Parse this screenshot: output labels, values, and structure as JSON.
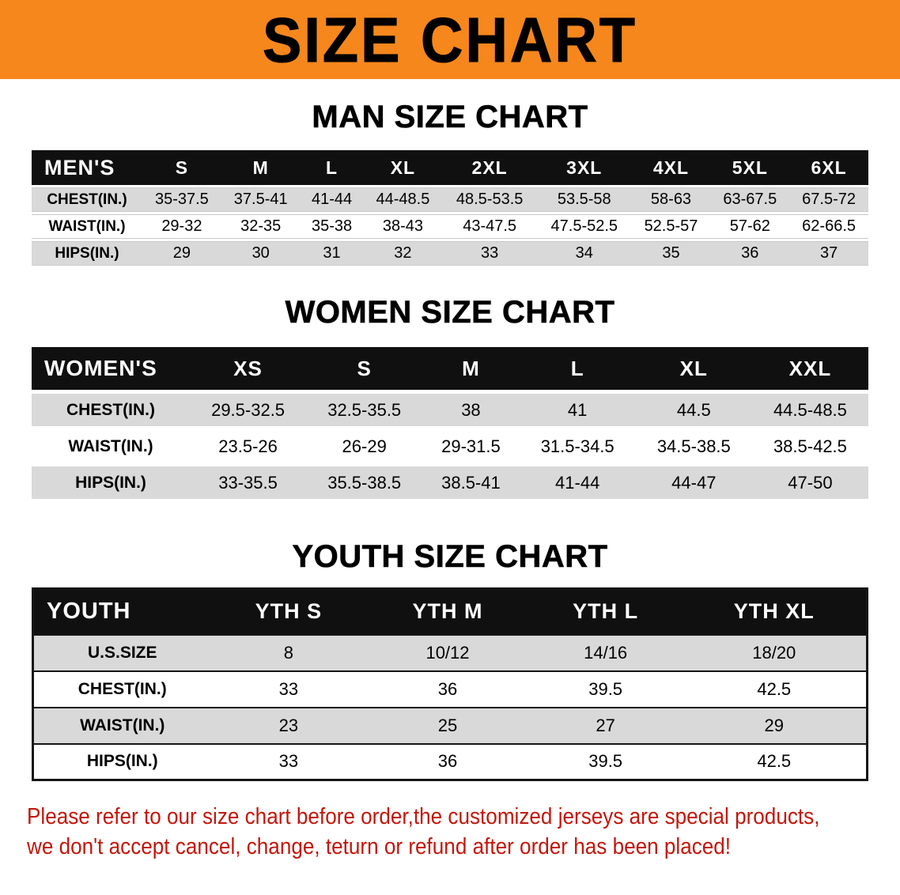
{
  "banner": {
    "title": "SIZE CHART"
  },
  "colors": {
    "banner-bg": "#f6871d",
    "table-header-bg": "#101010",
    "table-header-text": "#ffffff",
    "row-stripe": "#d9d9d9",
    "disclaimer-text": "#c2170c"
  },
  "chart_data": [
    {
      "type": "table",
      "title": "MAN SIZE CHART",
      "columns": [
        "MEN'S",
        "S",
        "M",
        "L",
        "XL",
        "2XL",
        "3XL",
        "4XL",
        "5XL",
        "6XL"
      ],
      "rows": [
        [
          "CHEST(IN.)",
          "35-37.5",
          "37.5-41",
          "41-44",
          "44-48.5",
          "48.5-53.5",
          "53.5-58",
          "58-63",
          "63-67.5",
          "67.5-72"
        ],
        [
          "WAIST(IN.)",
          "29-32",
          "32-35",
          "35-38",
          "38-43",
          "43-47.5",
          "47.5-52.5",
          "52.5-57",
          "57-62",
          "62-66.5"
        ],
        [
          "HIPS(IN.)",
          "29",
          "30",
          "31",
          "32",
          "33",
          "34",
          "35",
          "36",
          "37"
        ]
      ]
    },
    {
      "type": "table",
      "title": "WOMEN SIZE CHART",
      "columns": [
        "WOMEN'S",
        "XS",
        "S",
        "M",
        "L",
        "XL",
        "XXL"
      ],
      "rows": [
        [
          "CHEST(IN.)",
          "29.5-32.5",
          "32.5-35.5",
          "38",
          "41",
          "44.5",
          "44.5-48.5"
        ],
        [
          "WAIST(IN.)",
          "23.5-26",
          "26-29",
          "29-31.5",
          "31.5-34.5",
          "34.5-38.5",
          "38.5-42.5"
        ],
        [
          "HIPS(IN.)",
          "33-35.5",
          "35.5-38.5",
          "38.5-41",
          "41-44",
          "44-47",
          "47-50"
        ]
      ]
    },
    {
      "type": "table",
      "title": "YOUTH SIZE CHART",
      "columns": [
        "YOUTH",
        "YTH S",
        "YTH M",
        "YTH L",
        "YTH XL"
      ],
      "rows": [
        [
          "U.S.SIZE",
          "8",
          "10/12",
          "14/16",
          "18/20"
        ],
        [
          "CHEST(IN.)",
          "33",
          "36",
          "39.5",
          "42.5"
        ],
        [
          "WAIST(IN.)",
          "23",
          "25",
          "27",
          "29"
        ],
        [
          "HIPS(IN.)",
          "33",
          "36",
          "39.5",
          "42.5"
        ]
      ]
    }
  ],
  "disclaimer": {
    "line1": "Please refer to our size chart before order,the customized jerseys are special products,",
    "line2": "we don't accept cancel, change, teturn or refund after order has been placed!"
  }
}
